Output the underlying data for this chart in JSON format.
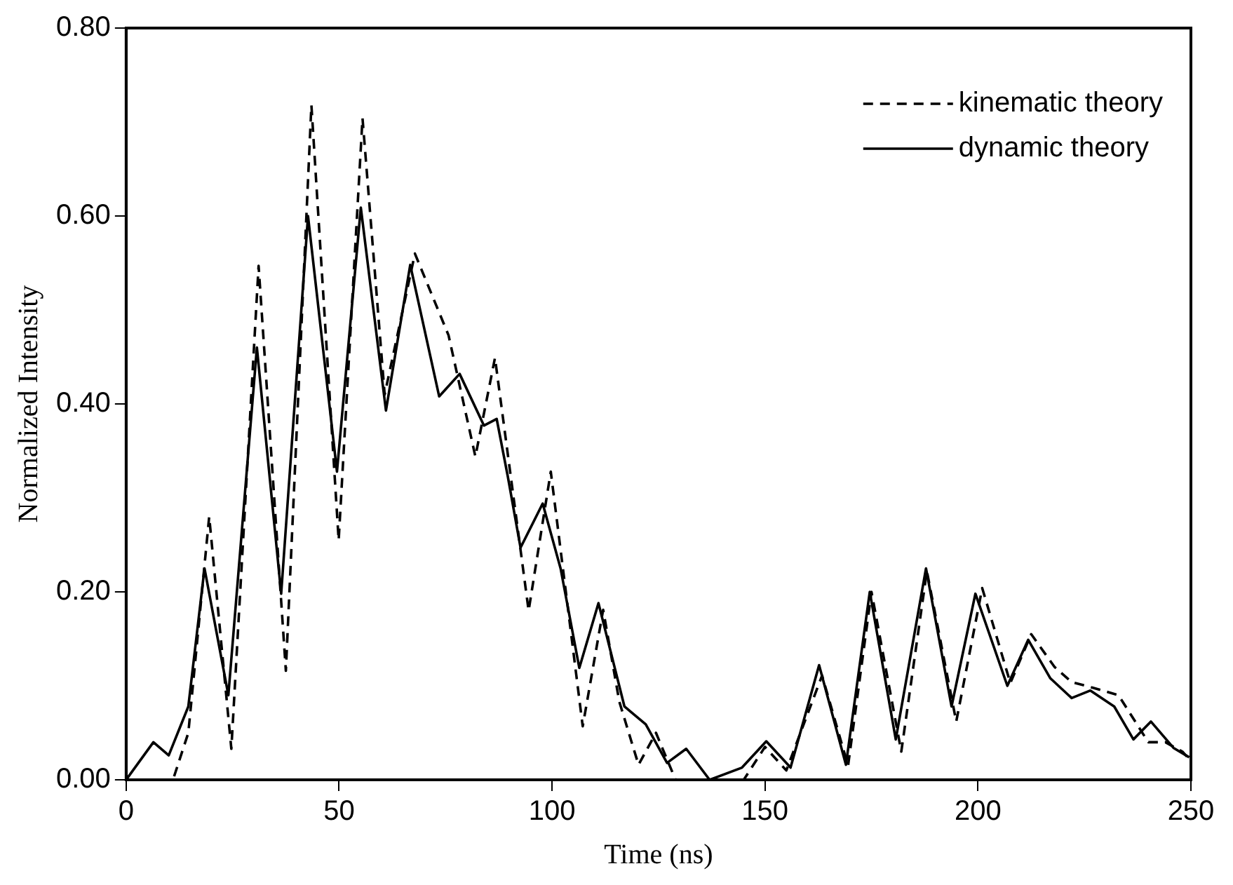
{
  "chart_data": {
    "type": "line",
    "xlabel": "Time (ns)",
    "ylabel": "Normalized Intensity",
    "xlim": [
      0,
      250
    ],
    "ylim": [
      0,
      0.8
    ],
    "xticks": [
      0,
      50,
      100,
      150,
      200,
      250
    ],
    "yticks": [
      {
        "value": 0,
        "label": "0.00"
      },
      {
        "value": 0.2,
        "label": "0.20"
      },
      {
        "value": 0.4,
        "label": "0.40"
      },
      {
        "value": 0.6,
        "label": "0.60"
      },
      {
        "value": 0.8,
        "label": "0.80"
      }
    ],
    "grid": false,
    "legend": "top right",
    "marker": "none",
    "series": [
      {
        "name": "kinematic theory",
        "color": "#000000",
        "line_style": "dashed",
        "x": [
          0,
          11,
          14.6,
          19.5,
          24.7,
          31.1,
          37.5,
          43.5,
          49.9,
          55.5,
          60.7,
          67.8,
          75.7,
          82,
          86.6,
          94.5,
          99.7,
          107.2,
          112,
          115.8,
          120.3,
          124.4,
          129,
          145,
          150,
          155,
          163.4,
          169.5,
          175,
          182,
          188,
          194.9,
          201,
          207.6,
          212.5,
          218,
          222,
          227,
          233,
          240,
          244,
          248,
          250
        ],
        "values": [
          0,
          0,
          0.05,
          0.28,
          0.033,
          0.547,
          0.116,
          0.718,
          0.255,
          0.704,
          0.41,
          0.56,
          0.473,
          0.344,
          0.449,
          0.18,
          0.328,
          0.057,
          0.181,
          0.083,
          0.016,
          0.05,
          0,
          0,
          0.035,
          0.01,
          0.111,
          0.015,
          0.2,
          0.03,
          0.222,
          0.062,
          0.204,
          0.103,
          0.155,
          0.12,
          0.104,
          0.098,
          0.09,
          0.04,
          0.04,
          0.03,
          0.02
        ]
      },
      {
        "name": "dynamic theory",
        "color": "#000000",
        "line_style": "solid",
        "x": [
          0,
          6.4,
          10,
          14.6,
          18.4,
          24,
          30.7,
          36.4,
          42.7,
          49.5,
          55.1,
          61,
          66.7,
          73.5,
          78.3,
          84,
          87,
          89.6,
          92.6,
          97.8,
          102,
          106.4,
          110.9,
          117,
          122,
          127,
          131.5,
          137,
          144.6,
          150.3,
          156,
          162.7,
          169,
          174.6,
          180.7,
          187.8,
          193.8,
          199.4,
          206.9,
          211.8,
          217,
          222,
          226.4,
          232,
          236.5,
          240.6,
          245.9,
          249.6
        ],
        "values": [
          0,
          0.04,
          0.026,
          0.078,
          0.225,
          0.09,
          0.46,
          0.198,
          0.6,
          0.328,
          0.609,
          0.393,
          0.548,
          0.408,
          0.432,
          0.377,
          0.384,
          0.323,
          0.247,
          0.294,
          0.225,
          0.119,
          0.188,
          0.078,
          0.059,
          0.018,
          0.033,
          0,
          0.013,
          0.041,
          0.013,
          0.122,
          0.016,
          0.2,
          0.043,
          0.225,
          0.078,
          0.198,
          0.1,
          0.149,
          0.108,
          0.087,
          0.095,
          0.078,
          0.043,
          0.062,
          0.034,
          0.024
        ]
      }
    ]
  }
}
